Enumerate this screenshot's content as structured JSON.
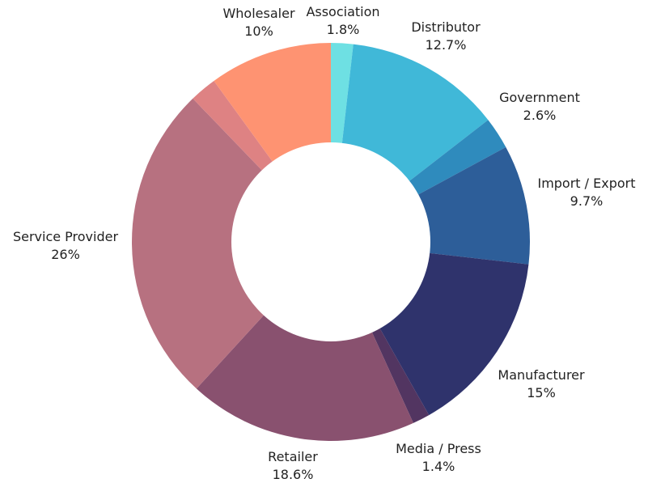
{
  "chart_data": {
    "type": "pie",
    "donut": true,
    "series": [
      {
        "name": "Association",
        "value": 1.8,
        "value_label": "1.8%",
        "color": "#6ee0e3"
      },
      {
        "name": "Distributor",
        "value": 12.7,
        "value_label": "12.7%",
        "color": "#40b8d8"
      },
      {
        "name": "Government",
        "value": 2.6,
        "value_label": "2.6%",
        "color": "#2f8bbd"
      },
      {
        "name": "Import / Export",
        "value": 9.7,
        "value_label": "9.7%",
        "color": "#2d5e99"
      },
      {
        "name": "Manufacturer",
        "value": 15,
        "value_label": "15%",
        "color": "#2f336c"
      },
      {
        "name": "Media / Press",
        "value": 1.4,
        "value_label": "1.4%",
        "color": "#523561"
      },
      {
        "name": "Retailer",
        "value": 18.6,
        "value_label": "18.6%",
        "color": "#89516f"
      },
      {
        "name": "Service Provider",
        "value": 26,
        "value_label": "26%",
        "color": "#b77180"
      },
      {
        "name": "",
        "value": 2.2,
        "value_label": "",
        "color": "#de8283"
      },
      {
        "name": "Wholesaler",
        "value": 10,
        "value_label": "10%",
        "color": "#fe9372"
      }
    ]
  }
}
